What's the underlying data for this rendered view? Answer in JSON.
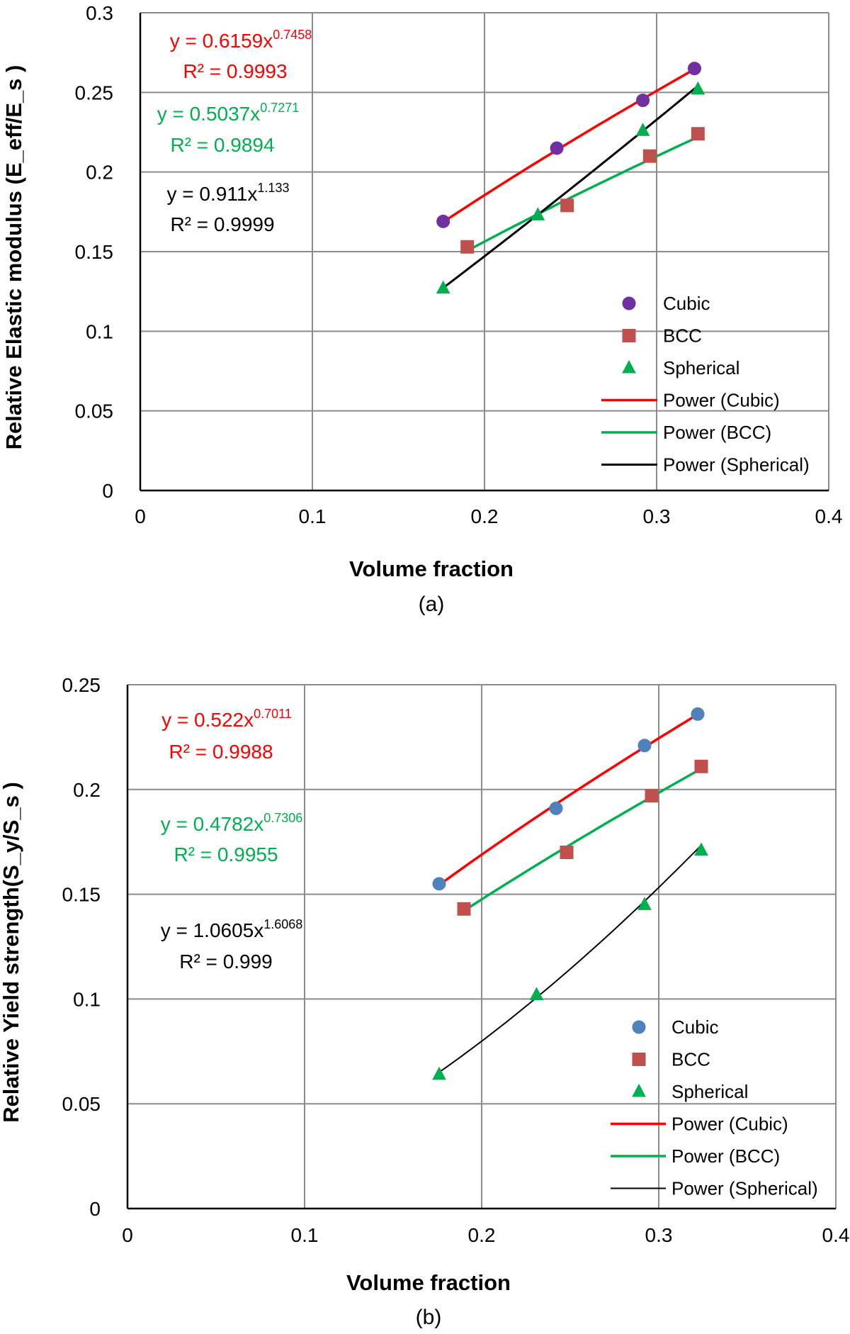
{
  "chart_data": [
    {
      "type": "scatter",
      "panel_label": "(a)",
      "xlabel": "Volume fraction",
      "ylabel": "Relative Elastic modulus (E_eff/E_s )",
      "xlim": [
        0,
        0.4
      ],
      "ylim": [
        0,
        0.3
      ],
      "xticks": [
        "0",
        "0.1",
        "0.2",
        "0.3",
        "0.4"
      ],
      "yticks": [
        "0",
        "0.05",
        "0.1",
        "0.15",
        "0.2",
        "0.25",
        "0.3"
      ],
      "xtick_values": [
        0,
        0.1,
        0.2,
        0.3,
        0.4
      ],
      "ytick_values": [
        0,
        0.05,
        0.1,
        0.15,
        0.2,
        0.25,
        0.3
      ],
      "grid": true,
      "legend_position": "lower-right",
      "series": [
        {
          "name": "Cubic",
          "marker": "circle",
          "color": "#7030a0",
          "x": [
            0.176,
            0.242,
            0.292,
            0.322
          ],
          "y": [
            0.169,
            0.215,
            0.245,
            0.265
          ]
        },
        {
          "name": "BCC",
          "marker": "square",
          "color": "#c0504d",
          "x": [
            0.19,
            0.248,
            0.296,
            0.324
          ],
          "y": [
            0.153,
            0.179,
            0.21,
            0.224
          ]
        },
        {
          "name": "Spherical",
          "marker": "triangle",
          "color": "#00b050",
          "x": [
            0.176,
            0.231,
            0.292,
            0.324
          ],
          "y": [
            0.127,
            0.173,
            0.226,
            0.252
          ]
        }
      ],
      "trendlines": [
        {
          "name": "Power (Cubic)",
          "color": "#ff0000",
          "width": 3.5,
          "a": 0.6159,
          "b": 0.7458,
          "x_range": [
            0.176,
            0.322
          ],
          "equation_prefix": "y = 0.6159x",
          "equation_exp": "0.7458",
          "r2": "R² = 0.9993"
        },
        {
          "name": "Power (BCC)",
          "color": "#00b050",
          "width": 3.5,
          "a": 0.5037,
          "b": 0.7271,
          "x_range": [
            0.19,
            0.324
          ],
          "equation_prefix": "y = 0.5037x",
          "equation_exp": "0.7271",
          "r2": "R² = 0.9894"
        },
        {
          "name": "Power (Spherical)",
          "color": "#000000",
          "width": 3,
          "a": 0.911,
          "b": 1.133,
          "x_range": [
            0.176,
            0.324
          ],
          "equation_prefix": "y = 0.911x",
          "equation_exp": "1.133",
          "r2": "R² = 0.9999"
        }
      ]
    },
    {
      "type": "scatter",
      "panel_label": "(b)",
      "xlabel": "Volume fraction",
      "ylabel": "Relative Yield strength(S_y/S_s )",
      "xlim": [
        0,
        0.4
      ],
      "ylim": [
        0,
        0.25
      ],
      "xticks": [
        "0",
        "0.1",
        "0.2",
        "0.3",
        "0.4"
      ],
      "yticks": [
        "0",
        "0.05",
        "0.1",
        "0.15",
        "0.2",
        "0.25"
      ],
      "xtick_values": [
        0,
        0.1,
        0.2,
        0.3,
        0.4
      ],
      "ytick_values": [
        0,
        0.05,
        0.1,
        0.15,
        0.2,
        0.25
      ],
      "grid": true,
      "legend_position": "lower-right",
      "series": [
        {
          "name": "Cubic",
          "marker": "circle",
          "color": "#4f81bd",
          "x": [
            0.176,
            0.242,
            0.292,
            0.322
          ],
          "y": [
            0.155,
            0.191,
            0.221,
            0.236
          ]
        },
        {
          "name": "BCC",
          "marker": "square",
          "color": "#c0504d",
          "x": [
            0.19,
            0.248,
            0.296,
            0.324
          ],
          "y": [
            0.143,
            0.17,
            0.197,
            0.211
          ]
        },
        {
          "name": "Spherical",
          "marker": "triangle",
          "color": "#00b050",
          "x": [
            0.176,
            0.231,
            0.292,
            0.324
          ],
          "y": [
            0.064,
            0.102,
            0.145,
            0.171
          ]
        }
      ],
      "trendlines": [
        {
          "name": "Power (Cubic)",
          "color": "#ff0000",
          "width": 3.5,
          "a": 0.522,
          "b": 0.7011,
          "x_range": [
            0.176,
            0.322
          ],
          "equation_prefix": "y = 0.522x",
          "equation_exp": "0.7011",
          "r2": "R² = 0.9988"
        },
        {
          "name": "Power (BCC)",
          "color": "#00b050",
          "width": 3.5,
          "a": 0.4782,
          "b": 0.7306,
          "x_range": [
            0.19,
            0.324
          ],
          "equation_prefix": "y = 0.4782x",
          "equation_exp": "0.7306",
          "r2": "R² = 0.9955"
        },
        {
          "name": "Power (Spherical)",
          "color": "#000000",
          "width": 2,
          "a": 1.0605,
          "b": 1.6068,
          "x_range": [
            0.176,
            0.324
          ],
          "equation_prefix": "y = 1.0605x",
          "equation_exp": "1.6068",
          "r2": "R² = 0.999"
        }
      ]
    }
  ]
}
